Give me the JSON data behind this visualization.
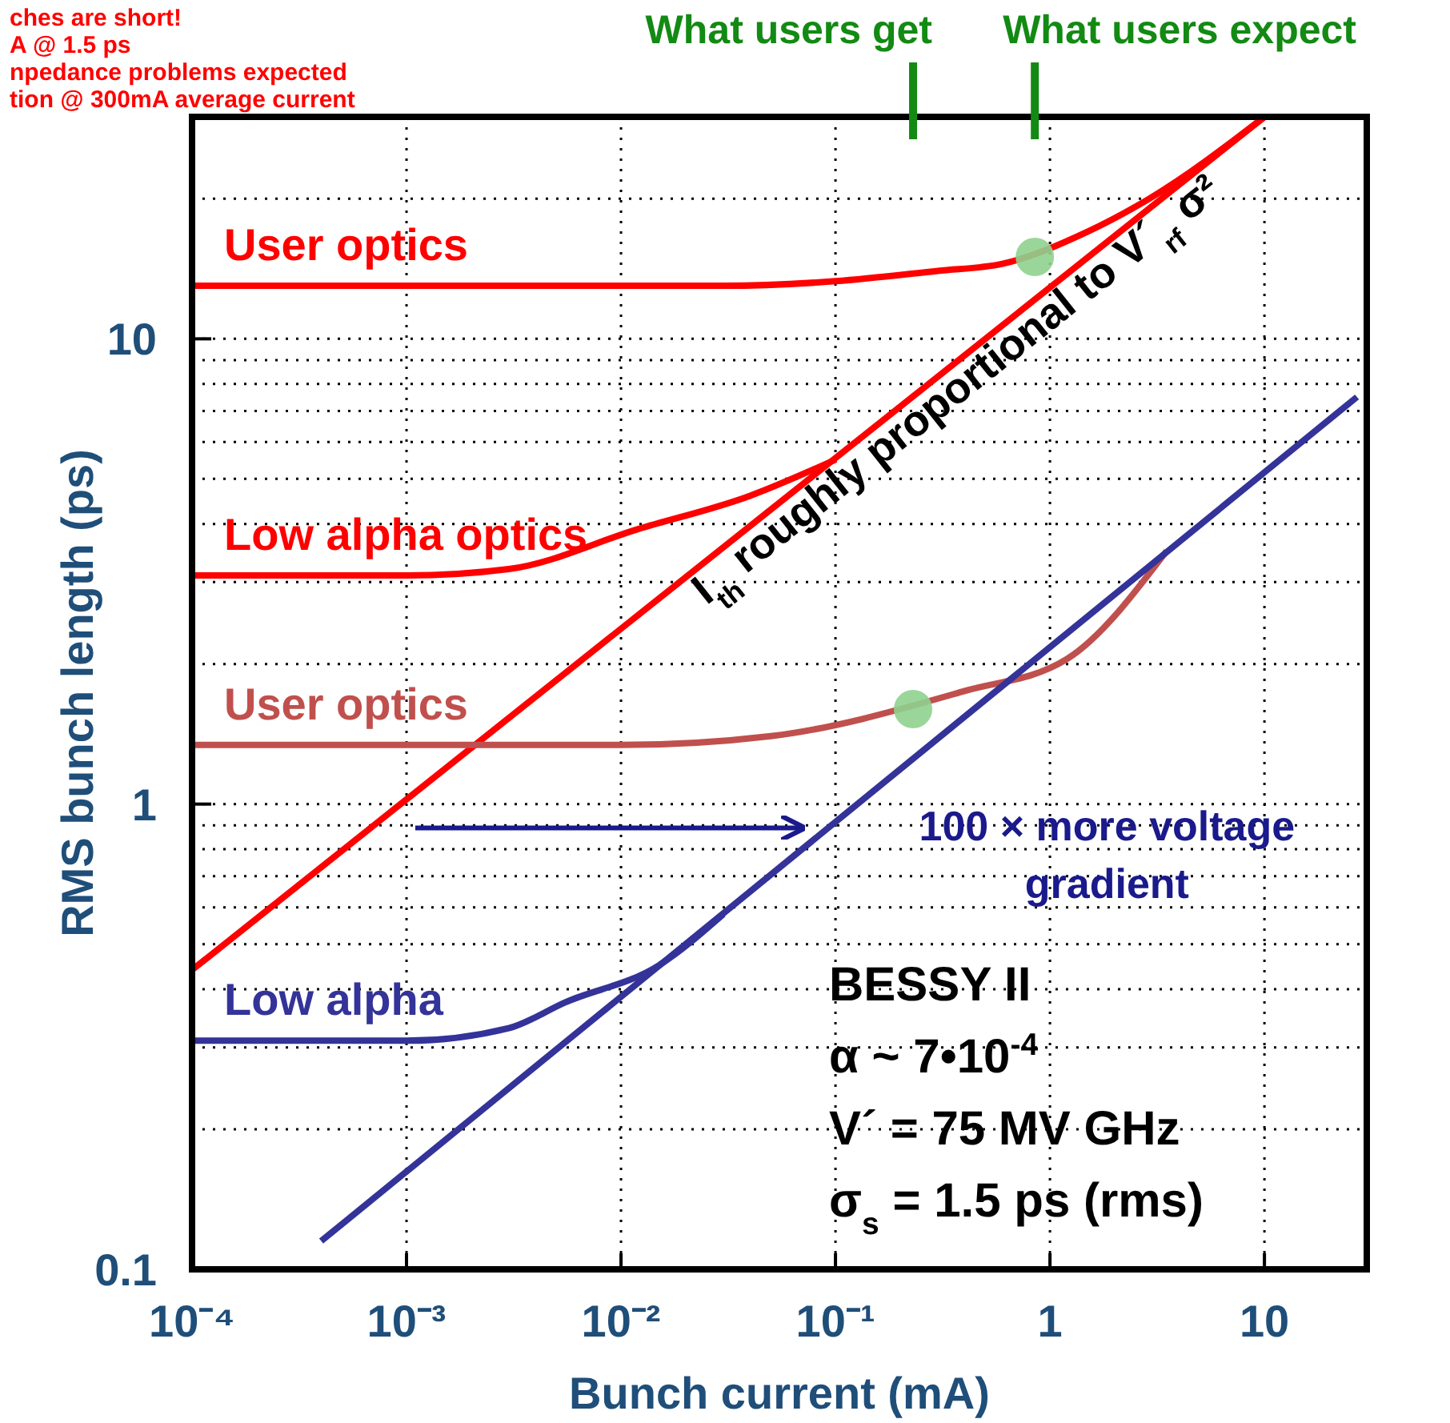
{
  "chart_data": {
    "type": "line",
    "xlabel": "Bunch current (mA)",
    "ylabel": "RMS bunch length (ps)",
    "log": "xy",
    "grid": true,
    "line_style": "solid",
    "xlim": [
      0.0001,
      30
    ],
    "ylim": [
      0.1,
      30
    ],
    "xticks": [
      {
        "value": 0.0001,
        "label": "10⁻⁴"
      },
      {
        "value": 0.001,
        "label": "10⁻³"
      },
      {
        "value": 0.01,
        "label": "10⁻²"
      },
      {
        "value": 0.1,
        "label": "10⁻¹"
      },
      1,
      10
    ],
    "yticks": [
      0.1,
      {
        "value": 0.2,
        "label": null
      },
      {
        "value": 0.3,
        "label": null
      },
      {
        "value": 0.4,
        "label": null
      },
      {
        "value": 0.5,
        "label": null
      },
      {
        "value": 0.6,
        "label": null
      },
      {
        "value": 0.7,
        "label": null
      },
      {
        "value": 0.8,
        "label": null
      },
      {
        "value": 0.9,
        "label": null
      },
      1,
      {
        "value": 2,
        "label": null
      },
      {
        "value": 3,
        "label": null
      },
      {
        "value": 4,
        "label": null
      },
      {
        "value": 5,
        "label": null
      },
      {
        "value": 6,
        "label": null
      },
      {
        "value": 7,
        "label": null
      },
      {
        "value": 8,
        "label": null
      },
      {
        "value": 9,
        "label": null
      },
      10,
      {
        "value": 20,
        "label": null
      }
    ],
    "series": [
      {
        "name": "User optics",
        "color": "#ff0000",
        "x": [
          0.0001,
          0.03,
          0.1,
          0.3,
          0.6,
          1.5,
          2.9,
          10
        ],
        "values": [
          13,
          13,
          13.3,
          14,
          14.5,
          17,
          20,
          30
        ]
      },
      {
        "color": "#ff0000",
        "x": [
          0.0001,
          10
        ],
        "values": [
          0.44,
          30
        ]
      },
      {
        "name": "Low alpha optics",
        "color": "#ff0000",
        "x": [
          0.0001,
          0.001,
          0.003,
          0.012,
          0.04,
          0.1
        ],
        "values": [
          3.1,
          3.1,
          3.2,
          3.9,
          4.6,
          5.5
        ]
      },
      {
        "name": "User optics",
        "color": "#c0504d",
        "x": [
          0.0001,
          0.01,
          0.05,
          0.4,
          1.2,
          3.5
        ],
        "values": [
          1.34,
          1.34,
          1.4,
          1.75,
          2.05,
          3.5
        ]
      },
      {
        "color": "#333399",
        "x": [
          0.0004,
          27
        ],
        "values": [
          0.115,
          7.5
        ]
      },
      {
        "name": "Low alpha",
        "color": "#333399",
        "x": [
          0.0001,
          0.001,
          0.003,
          0.0055,
          0.015,
          0.03
        ],
        "values": [
          0.31,
          0.31,
          0.33,
          0.375,
          0.45,
          0.58
        ]
      },
      {
        "type": "scatter",
        "color": "#8fd18f",
        "x": [
          0.85,
          0.23
        ],
        "values": [
          15,
          1.6
        ]
      }
    ],
    "ref_lines": [
      {
        "axis": "x",
        "value": 0.23,
        "label": "What users get",
        "color": "#138a13"
      },
      {
        "axis": "x",
        "value": 0.85,
        "label": "What users expect",
        "color": "#138a13"
      }
    ],
    "annotations": [
      "I$_{th}$ roughly proportional to V´$_{rf}$ σ²",
      "100 × more voltage gradient",
      "BESSY II",
      "α ~ 7•10$^{-4}$",
      "V´ = 75 MV GHz",
      "σ$_{s}$ = 1.5 ps (rms)",
      "ches are short!",
      "A @ 1.5 ps",
      "npedance problems expected",
      "tion @ 300mA average current"
    ]
  }
}
